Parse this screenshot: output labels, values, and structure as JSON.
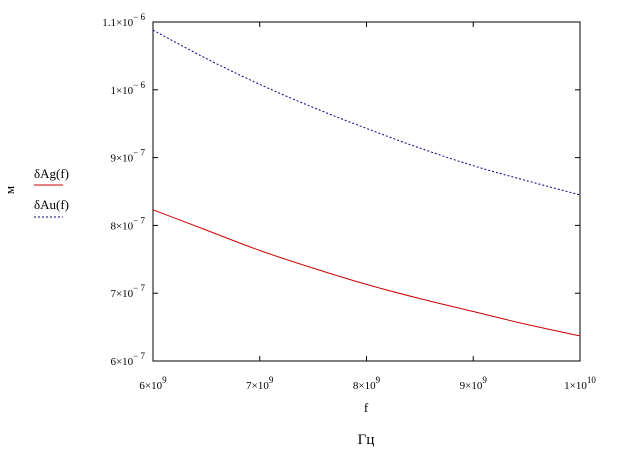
{
  "chart_data": {
    "type": "line",
    "xlabel": "f",
    "x_unit": "Гц",
    "ylabel": "м",
    "xlim": [
      6000000000.0,
      10000000000.0
    ],
    "ylim": [
      6e-07,
      1.1e-06
    ],
    "grid": false,
    "legend_position": "left",
    "x_ticks": [
      {
        "value": 6000000000.0,
        "mant": "6",
        "exp": "9"
      },
      {
        "value": 7000000000.0,
        "mant": "7",
        "exp": "9"
      },
      {
        "value": 8000000000.0,
        "mant": "8",
        "exp": "9"
      },
      {
        "value": 9000000000.0,
        "mant": "9",
        "exp": "9"
      },
      {
        "value": 10000000000.0,
        "mant": "1",
        "exp": "10"
      }
    ],
    "y_ticks": [
      {
        "value": 6e-07,
        "mant": "6",
        "exp": "− 7"
      },
      {
        "value": 7e-07,
        "mant": "7",
        "exp": "− 7"
      },
      {
        "value": 8e-07,
        "mant": "8",
        "exp": "− 7"
      },
      {
        "value": 9e-07,
        "mant": "9",
        "exp": "− 7"
      },
      {
        "value": 1e-06,
        "mant": "1",
        "exp": "− 6"
      },
      {
        "value": 1.1e-06,
        "mant": "1.1",
        "exp": "− 6"
      }
    ],
    "x": [
      6000000000.0,
      6500000000.0,
      7000000000.0,
      7500000000.0,
      8000000000.0,
      8500000000.0,
      9000000000.0,
      9500000000.0,
      10000000000.0
    ],
    "series": [
      {
        "name": "δAg(f)",
        "color": "#cc0000",
        "style": "solid",
        "values": [
          8.23e-07,
          7.93e-07,
          7.63e-07,
          7.37e-07,
          7.13e-07,
          6.92e-07,
          6.73e-07,
          6.54e-07,
          6.37e-07
        ]
      },
      {
        "name": "δAu(f)",
        "color": "#00008b",
        "style": "dotted",
        "values": [
          1.088e-06,
          1.046e-06,
          1.008e-06,
          9.74e-07,
          9.43e-07,
          9.14e-07,
          8.88e-07,
          8.66e-07,
          8.45e-07
        ]
      }
    ]
  }
}
